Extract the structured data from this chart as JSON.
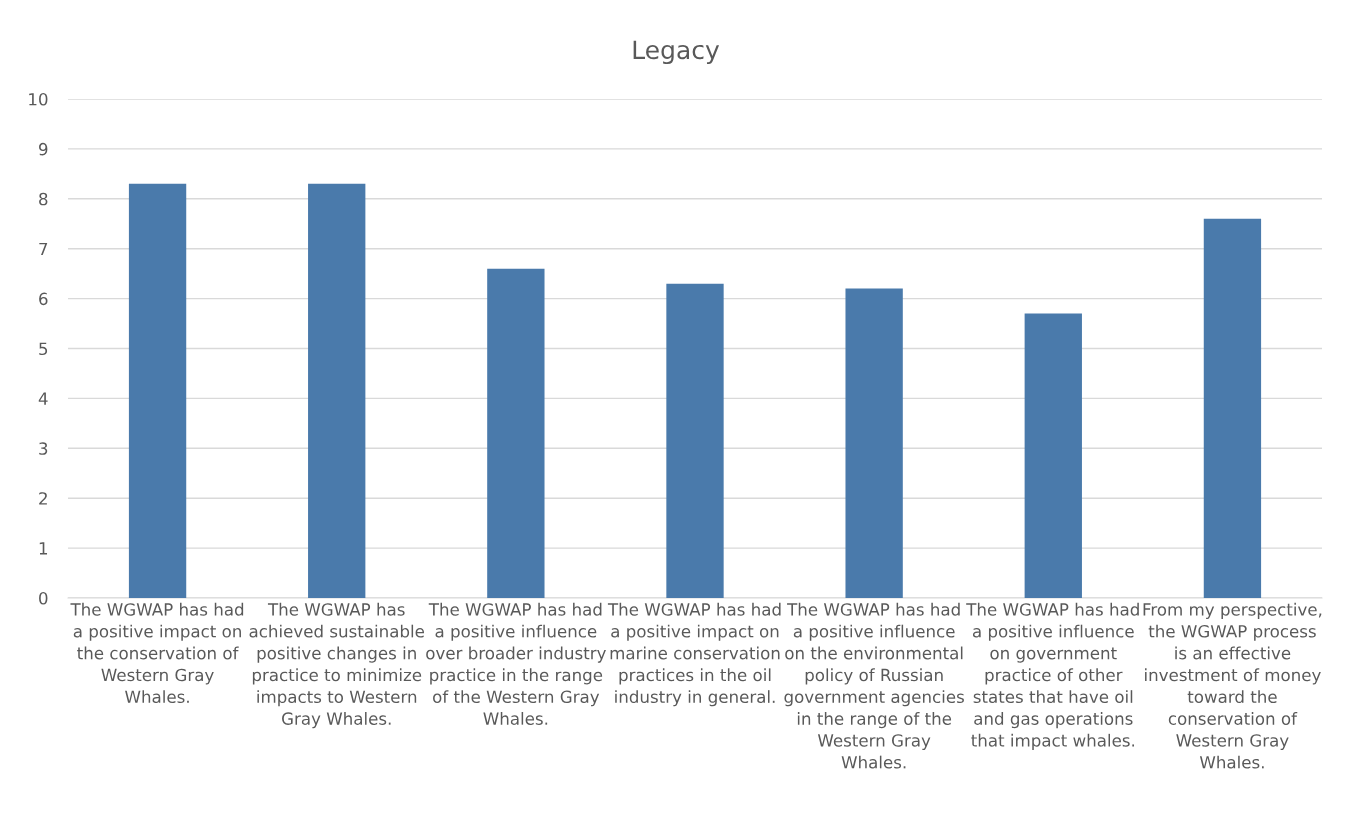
{
  "chart_data": {
    "type": "bar",
    "title": "Legacy",
    "categories": [
      "The WGWAP has had\na positive impact on\nthe conservation of\nWestern Gray\nWhales.",
      "The WGWAP has\nachieved sustainable\npositive changes in\npractice to minimize\nimpacts to Western\nGray Whales.",
      "The WGWAP has had\na positive influence\nover broader industry\npractice in the range\nof the Western Gray\nWhales.",
      "The WGWAP has had\na positive impact on\nmarine conservation\npractices in the oil\nindustry in general.",
      "The WGWAP has had\na positive influence\non the environmental\npolicy of Russian\ngovernment agencies\nin the range of the\nWestern Gray\nWhales.",
      "The WGWAP has had\na positive influence\non government\npractice of other\nstates that have oil\nand gas operations\nthat impact whales.",
      "From my perspective,\nthe WGWAP process\nis an effective\ninvestment of money\ntoward the\nconservation of\nWestern Gray\nWhales."
    ],
    "values": [
      8.3,
      8.3,
      6.6,
      6.3,
      6.2,
      5.7,
      7.6
    ],
    "color": "#4a7aab",
    "ylim": [
      0,
      10
    ],
    "yticks": [
      0,
      1,
      2,
      3,
      4,
      5,
      6,
      7,
      8,
      9,
      10
    ],
    "grid": "y",
    "legend": false
  }
}
